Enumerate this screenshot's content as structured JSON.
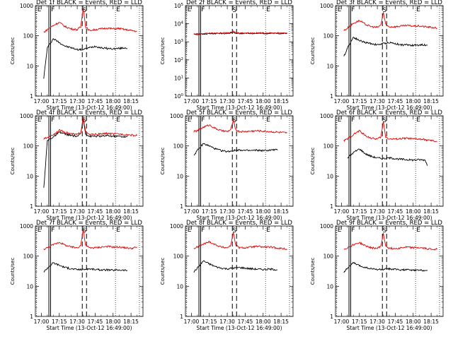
{
  "figure": {
    "xlabel": "Start Time (13-Oct-12 16:49:00)",
    "ylabel": "Counts/sec",
    "xticks": [
      "17:00",
      "17:15",
      "17:30",
      "17:45",
      "18:00",
      "18:15"
    ],
    "series_colors": {
      "events": "#000000",
      "lld": "#e00000"
    }
  },
  "chart_data": [
    {
      "type": "line",
      "title": "Det 1f  BLACK = Events, RED = LLD",
      "ylim": [
        1,
        1000
      ],
      "yticks": [
        "1",
        "10",
        "100",
        "1000"
      ],
      "xlim": [
        "16:55",
        "18:25"
      ],
      "markers": {
        "F": "17:07",
        "S": "17:36",
        "E": "18:02"
      },
      "series": [
        {
          "name": "Events",
          "color": "#000000",
          "x": [
            "17:02",
            "17:05",
            "17:10",
            "17:15",
            "17:20",
            "17:25",
            "17:30",
            "17:35",
            "17:40",
            "17:45",
            "17:50",
            "17:55",
            "18:00",
            "18:05",
            "18:10",
            "18:12"
          ],
          "y": [
            4,
            40,
            80,
            60,
            45,
            40,
            35,
            35,
            40,
            45,
            40,
            38,
            37,
            38,
            40,
            38
          ]
        },
        {
          "name": "LLD",
          "color": "#e00000",
          "x": [
            "17:02",
            "17:05",
            "17:10",
            "17:15",
            "17:20",
            "17:25",
            "17:30",
            "17:33",
            "17:35",
            "17:37",
            "17:40",
            "17:45",
            "17:50",
            "17:55",
            "18:00",
            "18:05",
            "18:10",
            "18:15",
            "18:20"
          ],
          "y": [
            130,
            160,
            220,
            280,
            200,
            170,
            160,
            200,
            900,
            200,
            150,
            160,
            170,
            180,
            170,
            175,
            160,
            150,
            140
          ]
        }
      ]
    },
    {
      "type": "line",
      "title": "Det 2f  BLACK = Events, RED = LLD",
      "ylim": [
        1,
        100000
      ],
      "yticks": [
        "10^0",
        "10^1",
        "10^2",
        "10^3",
        "10^4",
        "10^5"
      ],
      "xlim": [
        "16:55",
        "18:25"
      ],
      "markers": {
        "F": "17:07",
        "S": "17:36",
        "E": "18:02"
      },
      "series": [
        {
          "name": "Events",
          "color": "#000000",
          "x": [
            "17:02",
            "17:05",
            "17:10",
            "17:15",
            "17:20",
            "17:25",
            "17:30",
            "17:33",
            "17:35",
            "17:37",
            "17:40",
            "17:45",
            "17:50",
            "17:55",
            "18:00",
            "18:05",
            "18:10",
            "18:15",
            "18:20"
          ],
          "y": [
            2500,
            2600,
            2700,
            2800,
            2800,
            2900,
            2900,
            3000,
            3600,
            3000,
            2900,
            2900,
            2900,
            2900,
            2900,
            2900,
            2900,
            2900,
            2900
          ]
        },
        {
          "name": "LLD",
          "color": "#e00000",
          "x": [
            "17:02",
            "17:05",
            "17:10",
            "17:15",
            "17:20",
            "17:25",
            "17:30",
            "17:33",
            "17:35",
            "17:37",
            "17:40",
            "17:45",
            "17:50",
            "17:55",
            "18:00",
            "18:05",
            "18:10",
            "18:15",
            "18:20"
          ],
          "y": [
            2700,
            2800,
            2900,
            3000,
            3000,
            3100,
            3100,
            3200,
            3900,
            3200,
            3100,
            3100,
            3100,
            3100,
            3100,
            3100,
            3100,
            3100,
            3100
          ]
        }
      ]
    },
    {
      "type": "line",
      "title": "Det 3f  BLACK = Events, RED = LLD",
      "ylim": [
        1,
        1000
      ],
      "yticks": [
        "1",
        "10",
        "100",
        "1000"
      ],
      "xlim": [
        "16:55",
        "18:25"
      ],
      "markers": {
        "F": "17:07",
        "S": "17:36",
        "E": "18:02"
      },
      "series": [
        {
          "name": "Events",
          "color": "#000000",
          "x": [
            "17:02",
            "17:05",
            "17:10",
            "17:15",
            "17:20",
            "17:25",
            "17:30",
            "17:35",
            "17:40",
            "17:45",
            "17:50",
            "17:55",
            "18:00",
            "18:05",
            "18:10",
            "18:12"
          ],
          "y": [
            20,
            40,
            90,
            70,
            60,
            55,
            50,
            55,
            60,
            55,
            50,
            50,
            48,
            50,
            50,
            48
          ]
        },
        {
          "name": "LLD",
          "color": "#e00000",
          "x": [
            "17:02",
            "17:05",
            "17:10",
            "17:15",
            "17:20",
            "17:25",
            "17:30",
            "17:33",
            "17:35",
            "17:37",
            "17:40",
            "17:45",
            "17:50",
            "17:55",
            "18:00",
            "18:05",
            "18:10",
            "18:15",
            "18:20"
          ],
          "y": [
            150,
            180,
            260,
            320,
            240,
            200,
            190,
            230,
            600,
            230,
            200,
            200,
            210,
            220,
            210,
            210,
            200,
            190,
            180
          ]
        }
      ]
    },
    {
      "type": "line",
      "title": "Det 4f  BLACK = Events, RED = LLD",
      "ylim": [
        1,
        1000
      ],
      "yticks": [
        "1",
        "10",
        "100",
        "1000"
      ],
      "xlim": [
        "16:55",
        "18:25"
      ],
      "markers": {
        "F": "17:07",
        "S": "17:36",
        "E": "18:02"
      },
      "series": [
        {
          "name": "Events",
          "color": "#000000",
          "x": [
            "17:02",
            "17:05",
            "17:10",
            "17:15",
            "17:20",
            "17:25",
            "17:30",
            "17:33",
            "17:35",
            "17:37",
            "17:40",
            "17:45",
            "17:50",
            "17:55",
            "18:00",
            "18:05",
            "18:10",
            "18:12"
          ],
          "y": [
            4,
            150,
            200,
            280,
            250,
            220,
            210,
            250,
            800,
            260,
            210,
            210,
            210,
            220,
            210,
            210,
            200,
            200
          ]
        },
        {
          "name": "LLD",
          "color": "#e00000",
          "x": [
            "17:02",
            "17:05",
            "17:10",
            "17:15",
            "17:20",
            "17:25",
            "17:30",
            "17:33",
            "17:35",
            "17:37",
            "17:40",
            "17:45",
            "17:50",
            "17:55",
            "18:00",
            "18:05",
            "18:10",
            "18:15",
            "18:20"
          ],
          "y": [
            170,
            190,
            240,
            330,
            290,
            250,
            240,
            280,
            950,
            290,
            240,
            240,
            250,
            260,
            250,
            250,
            240,
            230,
            220
          ]
        }
      ]
    },
    {
      "type": "line",
      "title": "Det 5f  BLACK = Events, RED = LLD",
      "ylim": [
        1,
        1000
      ],
      "yticks": [
        "1",
        "10",
        "100",
        "1000"
      ],
      "xlim": [
        "16:55",
        "18:25"
      ],
      "markers": {
        "F": "17:07",
        "S": "17:36",
        "E": "18:02"
      },
      "series": [
        {
          "name": "Events",
          "color": "#000000",
          "x": [
            "17:02",
            "17:05",
            "17:10",
            "17:15",
            "17:20",
            "17:25",
            "17:30",
            "17:35",
            "17:40",
            "17:45",
            "17:50",
            "17:55",
            "18:00",
            "18:05",
            "18:10",
            "18:12"
          ],
          "y": [
            50,
            70,
            120,
            100,
            80,
            70,
            65,
            70,
            75,
            70,
            70,
            72,
            70,
            72,
            75,
            72
          ]
        },
        {
          "name": "LLD",
          "color": "#e00000",
          "x": [
            "17:02",
            "17:05",
            "17:10",
            "17:15",
            "17:20",
            "17:25",
            "17:30",
            "17:33",
            "17:35",
            "17:37",
            "17:40",
            "17:45",
            "17:50",
            "17:55",
            "18:00",
            "18:05",
            "18:10",
            "18:15",
            "18:20"
          ],
          "y": [
            300,
            320,
            420,
            500,
            380,
            320,
            300,
            350,
            750,
            350,
            300,
            300,
            310,
            320,
            310,
            300,
            290,
            280,
            270
          ]
        }
      ]
    },
    {
      "type": "line",
      "title": "Det 6f  BLACK = Events, RED = LLD",
      "ylim": [
        1,
        1000
      ],
      "yticks": [
        "1",
        "10",
        "100",
        "1000"
      ],
      "xlim": [
        "16:55",
        "18:25"
      ],
      "markers": {
        "F": "17:07",
        "S": "17:36",
        "E": "18:02"
      },
      "series": [
        {
          "name": "Events",
          "color": "#000000",
          "x": [
            "17:05",
            "17:10",
            "17:15",
            "17:20",
            "17:25",
            "17:30",
            "17:35",
            "17:40",
            "17:45",
            "17:50",
            "17:55",
            "18:00",
            "18:05",
            "18:10",
            "18:12"
          ],
          "y": [
            40,
            60,
            80,
            55,
            45,
            40,
            38,
            40,
            38,
            36,
            35,
            34,
            35,
            34,
            22
          ]
        },
        {
          "name": "LLD",
          "color": "#e00000",
          "x": [
            "17:02",
            "17:05",
            "17:10",
            "17:15",
            "17:20",
            "17:25",
            "17:30",
            "17:33",
            "17:35",
            "17:37",
            "17:40",
            "17:45",
            "17:50",
            "17:55",
            "18:00",
            "18:05",
            "18:10",
            "18:15",
            "18:20"
          ],
          "y": [
            150,
            170,
            240,
            320,
            220,
            180,
            170,
            200,
            650,
            200,
            170,
            170,
            175,
            180,
            170,
            170,
            160,
            150,
            140
          ]
        }
      ]
    },
    {
      "type": "line",
      "title": "Det 7f  BLACK = Events, RED = LLD",
      "ylim": [
        1,
        1000
      ],
      "yticks": [
        "1",
        "10",
        "100",
        "1000"
      ],
      "xlim": [
        "16:55",
        "18:25"
      ],
      "markers": {
        "F": "17:07",
        "S": "17:36",
        "E": "18:02"
      },
      "series": [
        {
          "name": "Events",
          "color": "#000000",
          "x": [
            "17:02",
            "17:05",
            "17:10",
            "17:15",
            "17:20",
            "17:25",
            "17:30",
            "17:35",
            "17:40",
            "17:45",
            "17:50",
            "17:55",
            "18:00",
            "18:05",
            "18:10",
            "18:12"
          ],
          "y": [
            30,
            40,
            60,
            50,
            42,
            38,
            36,
            36,
            38,
            36,
            35,
            35,
            34,
            35,
            34,
            34
          ]
        },
        {
          "name": "LLD",
          "color": "#e00000",
          "x": [
            "17:02",
            "17:05",
            "17:10",
            "17:15",
            "17:20",
            "17:25",
            "17:30",
            "17:33",
            "17:35",
            "17:37",
            "17:40",
            "17:45",
            "17:50",
            "17:55",
            "18:00",
            "18:05",
            "18:10",
            "18:15",
            "18:20"
          ],
          "y": [
            170,
            190,
            240,
            290,
            230,
            200,
            190,
            230,
            800,
            230,
            190,
            190,
            200,
            210,
            200,
            200,
            190,
            180,
            200
          ]
        }
      ]
    },
    {
      "type": "line",
      "title": "Det 8f  BLACK = Events, RED = LLD",
      "ylim": [
        1,
        1000
      ],
      "yticks": [
        "1",
        "10",
        "100",
        "1000"
      ],
      "xlim": [
        "16:55",
        "18:25"
      ],
      "markers": {
        "F": "17:07",
        "S": "17:36",
        "E": "18:02"
      },
      "series": [
        {
          "name": "Events",
          "color": "#000000",
          "x": [
            "17:02",
            "17:05",
            "17:10",
            "17:15",
            "17:20",
            "17:25",
            "17:30",
            "17:35",
            "17:40",
            "17:45",
            "17:50",
            "17:55",
            "18:00",
            "18:05",
            "18:10",
            "18:12"
          ],
          "y": [
            30,
            40,
            70,
            55,
            45,
            40,
            38,
            40,
            42,
            40,
            38,
            37,
            36,
            37,
            36,
            35
          ]
        },
        {
          "name": "LLD",
          "color": "#e00000",
          "x": [
            "17:02",
            "17:05",
            "17:10",
            "17:15",
            "17:20",
            "17:25",
            "17:30",
            "17:33",
            "17:35",
            "17:37",
            "17:40",
            "17:45",
            "17:50",
            "17:55",
            "18:00",
            "18:05",
            "18:10",
            "18:15",
            "18:20"
          ],
          "y": [
            180,
            200,
            250,
            300,
            240,
            200,
            190,
            230,
            650,
            230,
            190,
            190,
            200,
            210,
            200,
            200,
            190,
            180,
            170
          ]
        }
      ]
    },
    {
      "type": "line",
      "title": "Det 9f  BLACK = Events, RED = LLD",
      "ylim": [
        1,
        1000
      ],
      "yticks": [
        "1",
        "10",
        "100",
        "1000"
      ],
      "xlim": [
        "16:55",
        "18:25"
      ],
      "markers": {
        "F": "17:07",
        "S": "17:36",
        "E": "18:02"
      },
      "series": [
        {
          "name": "Events",
          "color": "#000000",
          "x": [
            "17:02",
            "17:05",
            "17:10",
            "17:15",
            "17:20",
            "17:25",
            "17:30",
            "17:35",
            "17:40",
            "17:45",
            "17:50",
            "17:55",
            "18:00",
            "18:05",
            "18:10",
            "18:12"
          ],
          "y": [
            30,
            40,
            60,
            48,
            42,
            38,
            36,
            36,
            38,
            36,
            35,
            35,
            34,
            34,
            34,
            33
          ]
        },
        {
          "name": "LLD",
          "color": "#e00000",
          "x": [
            "17:02",
            "17:05",
            "17:10",
            "17:15",
            "17:20",
            "17:25",
            "17:30",
            "17:33",
            "17:35",
            "17:37",
            "17:40",
            "17:45",
            "17:50",
            "17:55",
            "18:00",
            "18:05",
            "18:10",
            "18:15",
            "18:20"
          ],
          "y": [
            170,
            190,
            240,
            280,
            220,
            190,
            180,
            220,
            550,
            220,
            180,
            180,
            190,
            200,
            190,
            190,
            180,
            170,
            170
          ]
        }
      ]
    }
  ]
}
